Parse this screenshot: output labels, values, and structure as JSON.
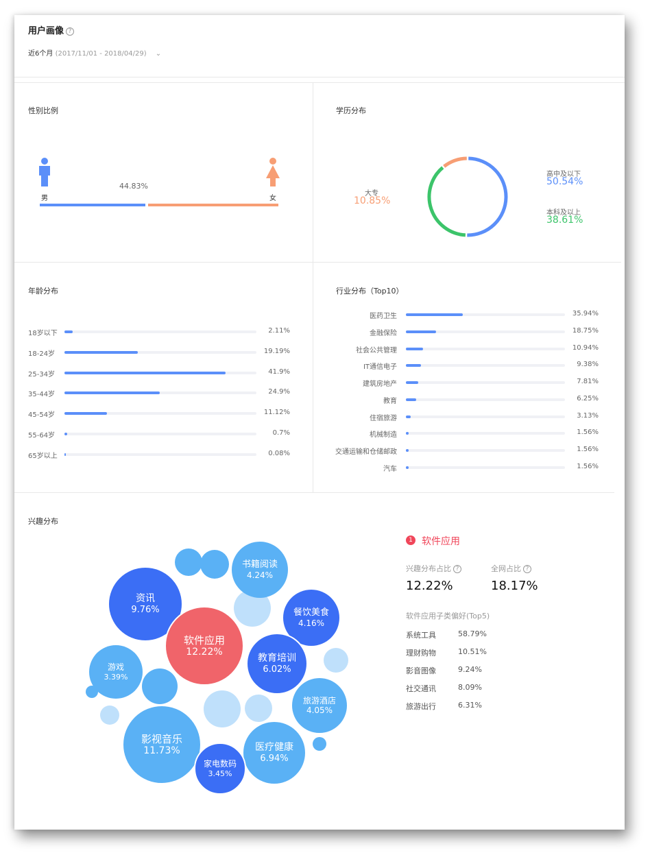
{
  "header": {
    "title": "用户画像",
    "range_label": "近6个月",
    "range_dates": "(2017/11/01 - 2018/04/29)",
    "chevron": "chevron-down-icon"
  },
  "gender": {
    "title": "性别比例",
    "male_label": "男",
    "female_label": "女",
    "male_pct_text": "44.83%",
    "male_share": 0.4483,
    "colors": {
      "male": "#5b8ff9",
      "female": "#f79e74"
    }
  },
  "education": {
    "title": "学历分布",
    "items": [
      {
        "label": "高中及以下",
        "value": "50.54%",
        "share": 0.5054,
        "color": "#5b8ff9"
      },
      {
        "label": "本科及以上",
        "value": "38.61%",
        "share": 0.3861,
        "color": "#3cc46a"
      },
      {
        "label": "大专",
        "value": "10.85%",
        "share": 0.1085,
        "color": "#f79e74"
      }
    ]
  },
  "age": {
    "title": "年龄分布",
    "items": [
      {
        "label": "18岁以下",
        "value": "2.11%",
        "share": 0.0211
      },
      {
        "label": "18-24岁",
        "value": "19.19%",
        "share": 0.1919
      },
      {
        "label": "25-34岁",
        "value": "41.9%",
        "share": 0.419
      },
      {
        "label": "35-44岁",
        "value": "24.9%",
        "share": 0.249
      },
      {
        "label": "45-54岁",
        "value": "11.12%",
        "share": 0.1112
      },
      {
        "label": "55-64岁",
        "value": "0.7%",
        "share": 0.007
      },
      {
        "label": "65岁以上",
        "value": "0.08%",
        "share": 0.0008
      }
    ]
  },
  "industry": {
    "title": "行业分布（Top10）",
    "items": [
      {
        "label": "医药卫生",
        "value": "35.94%",
        "share": 0.3594
      },
      {
        "label": "金融保险",
        "value": "18.75%",
        "share": 0.1875
      },
      {
        "label": "社会公共管理",
        "value": "10.94%",
        "share": 0.1094
      },
      {
        "label": "IT通信电子",
        "value": "9.38%",
        "share": 0.0938
      },
      {
        "label": "建筑房地产",
        "value": "7.81%",
        "share": 0.0781
      },
      {
        "label": "教育",
        "value": "6.25%",
        "share": 0.0625
      },
      {
        "label": "住宿旅游",
        "value": "3.13%",
        "share": 0.0313
      },
      {
        "label": "机械制造",
        "value": "1.56%",
        "share": 0.0156
      },
      {
        "label": "交通运输和仓储邮政",
        "value": "1.56%",
        "share": 0.0156
      },
      {
        "label": "汽车",
        "value": "1.56%",
        "share": 0.0156
      }
    ]
  },
  "interest": {
    "title": "兴趣分布",
    "bubbles": [
      {
        "name": "资讯",
        "value": "9.76%"
      },
      {
        "name": "软件应用",
        "value": "12.22%"
      },
      {
        "name": "书籍阅读",
        "value": "4.24%"
      },
      {
        "name": "餐饮美食",
        "value": "4.16%"
      },
      {
        "name": "教育培训",
        "value": "6.02%"
      },
      {
        "name": "游戏",
        "value": "3.39%"
      },
      {
        "name": "旅游酒店",
        "value": "4.05%"
      },
      {
        "name": "影视音乐",
        "value": "11.73%"
      },
      {
        "name": "医疗健康",
        "value": "6.94%"
      },
      {
        "name": "家电数码",
        "value": "3.45%"
      }
    ],
    "detail": {
      "rank": "1",
      "name": "软件应用",
      "share_label": "兴趣分布占比",
      "share_value": "12.22%",
      "net_label": "全网占比",
      "net_value": "18.17%",
      "sub_title": "软件应用子类偏好(Top5)",
      "sub_items": [
        {
          "label": "系统工具",
          "value": "58.79%"
        },
        {
          "label": "理财购物",
          "value": "10.51%"
        },
        {
          "label": "影音图像",
          "value": "9.24%"
        },
        {
          "label": "社交通讯",
          "value": "8.09%"
        },
        {
          "label": "旅游出行",
          "value": "6.31%"
        }
      ]
    }
  }
}
